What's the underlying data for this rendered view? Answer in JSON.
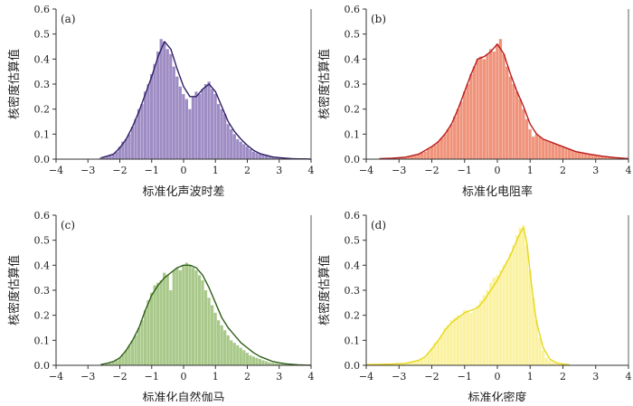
{
  "chart_data": [
    {
      "type": "bar",
      "panel_label": "(a)",
      "xlabel": "标准化声波时差",
      "ylabel": "核密度估算值",
      "xlim": [
        -4,
        4
      ],
      "ylim": [
        0,
        0.6
      ],
      "xticks": [
        "−4",
        "−3",
        "−2",
        "−1",
        "0",
        "1",
        "2",
        "3",
        "4"
      ],
      "yticks": [
        "0.0",
        "0.1",
        "0.2",
        "0.3",
        "0.4",
        "0.5",
        "0.6"
      ],
      "bar_color": "#9E8CC4",
      "line_color": "#2E1F66",
      "bin_width": 0.1,
      "bins_x": [
        -2.6,
        -2.5,
        -2.4,
        -2.3,
        -2.2,
        -2.1,
        -2.0,
        -1.9,
        -1.8,
        -1.7,
        -1.6,
        -1.5,
        -1.4,
        -1.3,
        -1.2,
        -1.1,
        -1.0,
        -0.9,
        -0.8,
        -0.7,
        -0.6,
        -0.5,
        -0.4,
        -0.3,
        -0.2,
        -0.1,
        0.0,
        0.1,
        0.2,
        0.3,
        0.4,
        0.5,
        0.6,
        0.7,
        0.8,
        0.9,
        1.0,
        1.1,
        1.2,
        1.3,
        1.4,
        1.5,
        1.6,
        1.7,
        1.8,
        1.9,
        2.0,
        2.1,
        2.2,
        2.3,
        2.4,
        2.5,
        2.6,
        2.7,
        2.8,
        2.9,
        3.0,
        3.1,
        3.2,
        3.3,
        3.4,
        3.5,
        3.6,
        3.7,
        3.8,
        3.9
      ],
      "bins_y": [
        0.005,
        0.008,
        0.01,
        0.015,
        0.02,
        0.03,
        0.05,
        0.07,
        0.08,
        0.1,
        0.13,
        0.16,
        0.2,
        0.22,
        0.27,
        0.3,
        0.34,
        0.38,
        0.43,
        0.48,
        0.47,
        0.44,
        0.42,
        0.37,
        0.33,
        0.29,
        0.26,
        0.24,
        0.2,
        0.25,
        0.27,
        0.26,
        0.28,
        0.3,
        0.31,
        0.28,
        0.26,
        0.22,
        0.2,
        0.18,
        0.14,
        0.12,
        0.1,
        0.08,
        0.07,
        0.06,
        0.05,
        0.04,
        0.03,
        0.025,
        0.02,
        0.02,
        0.018,
        0.012,
        0.008,
        0.005,
        0.006,
        0.004,
        0.003,
        0.002,
        0.002,
        0.001,
        0.001,
        0.001,
        0.001,
        0.001
      ],
      "kde_x": [
        -2.6,
        -2.4,
        -2.2,
        -2.0,
        -1.8,
        -1.6,
        -1.4,
        -1.2,
        -1.0,
        -0.8,
        -0.6,
        -0.4,
        -0.2,
        0.0,
        0.2,
        0.4,
        0.6,
        0.8,
        1.0,
        1.2,
        1.4,
        1.6,
        1.8,
        2.0,
        2.2,
        2.4,
        2.6,
        2.8,
        3.0,
        3.2,
        3.4,
        3.6,
        3.8,
        4.0
      ],
      "kde_y": [
        0.005,
        0.012,
        0.02,
        0.045,
        0.08,
        0.13,
        0.19,
        0.26,
        0.33,
        0.41,
        0.47,
        0.44,
        0.36,
        0.29,
        0.25,
        0.25,
        0.28,
        0.3,
        0.27,
        0.21,
        0.15,
        0.11,
        0.08,
        0.055,
        0.035,
        0.022,
        0.015,
        0.009,
        0.006,
        0.004,
        0.002,
        0.001,
        0.001,
        0.0
      ]
    },
    {
      "type": "bar",
      "panel_label": "(b)",
      "xlabel": "标准化电阻率",
      "ylabel": "核密度估算值",
      "xlim": [
        -4,
        4
      ],
      "ylim": [
        0,
        0.6
      ],
      "xticks": [
        "−4",
        "−3",
        "−2",
        "−1",
        "0",
        "1",
        "2",
        "3",
        "4"
      ],
      "yticks": [
        "0.0",
        "0.1",
        "0.2",
        "0.3",
        "0.4",
        "0.5",
        "0.6"
      ],
      "bar_color": "#F0937A",
      "line_color": "#B81B1B",
      "bin_width": 0.1,
      "bins_x": [
        -3.5,
        -3.4,
        -3.3,
        -3.2,
        -3.1,
        -3.0,
        -2.9,
        -2.8,
        -2.7,
        -2.6,
        -2.5,
        -2.4,
        -2.3,
        -2.2,
        -2.1,
        -2.0,
        -1.9,
        -1.8,
        -1.7,
        -1.6,
        -1.5,
        -1.4,
        -1.3,
        -1.2,
        -1.1,
        -1.0,
        -0.9,
        -0.8,
        -0.7,
        -0.6,
        -0.5,
        -0.4,
        -0.3,
        -0.2,
        -0.1,
        0.0,
        0.1,
        0.2,
        0.3,
        0.4,
        0.5,
        0.6,
        0.7,
        0.8,
        0.9,
        1.0,
        1.1,
        1.2,
        1.3,
        1.4,
        1.5,
        1.6,
        1.7,
        1.8,
        1.9,
        2.0,
        2.1,
        2.2,
        2.3,
        2.4,
        2.5,
        2.6,
        2.7,
        2.8,
        2.9,
        3.0,
        3.1,
        3.2,
        3.3,
        3.4,
        3.5,
        3.6,
        3.7,
        3.8,
        3.9
      ],
      "bins_y": [
        0.002,
        0.002,
        0.003,
        0.003,
        0.004,
        0.005,
        0.006,
        0.008,
        0.01,
        0.012,
        0.015,
        0.02,
        0.025,
        0.03,
        0.04,
        0.05,
        0.06,
        0.07,
        0.085,
        0.1,
        0.12,
        0.14,
        0.17,
        0.2,
        0.23,
        0.27,
        0.3,
        0.34,
        0.37,
        0.4,
        0.41,
        0.4,
        0.42,
        0.44,
        0.43,
        0.46,
        0.48,
        0.42,
        0.37,
        0.33,
        0.3,
        0.27,
        0.24,
        0.2,
        0.16,
        0.12,
        0.09,
        0.1,
        0.09,
        0.08,
        0.075,
        0.07,
        0.065,
        0.06,
        0.055,
        0.05,
        0.045,
        0.04,
        0.035,
        0.03,
        0.028,
        0.025,
        0.022,
        0.02,
        0.018,
        0.016,
        0.014,
        0.012,
        0.01,
        0.008,
        0.007,
        0.006,
        0.005,
        0.004,
        0.003
      ],
      "kde_x": [
        -3.6,
        -3.2,
        -2.8,
        -2.4,
        -2.0,
        -1.8,
        -1.6,
        -1.4,
        -1.2,
        -1.0,
        -0.8,
        -0.6,
        -0.4,
        -0.2,
        0.0,
        0.2,
        0.4,
        0.6,
        0.8,
        1.0,
        1.2,
        1.4,
        1.6,
        2.0,
        2.4,
        2.8,
        3.2,
        3.6,
        4.0
      ],
      "kde_y": [
        0.002,
        0.004,
        0.008,
        0.02,
        0.05,
        0.07,
        0.1,
        0.14,
        0.2,
        0.27,
        0.34,
        0.4,
        0.41,
        0.43,
        0.46,
        0.42,
        0.34,
        0.27,
        0.21,
        0.14,
        0.1,
        0.08,
        0.07,
        0.05,
        0.03,
        0.02,
        0.012,
        0.006,
        0.002
      ]
    },
    {
      "type": "bar",
      "panel_label": "(c)",
      "xlabel": "标准化自然伽马",
      "ylabel": "核密度估算值",
      "xlim": [
        -4,
        4
      ],
      "ylim": [
        0,
        0.6
      ],
      "xticks": [
        "−4",
        "−3",
        "−2",
        "−1",
        "0",
        "1",
        "2",
        "3",
        "4"
      ],
      "yticks": [
        "0.0",
        "0.1",
        "0.2",
        "0.3",
        "0.4",
        "0.5",
        "0.6"
      ],
      "bar_color": "#A9C98A",
      "line_color": "#2F5E1A",
      "bin_width": 0.1,
      "bins_x": [
        -2.4,
        -2.3,
        -2.2,
        -2.1,
        -2.0,
        -1.9,
        -1.8,
        -1.7,
        -1.6,
        -1.5,
        -1.4,
        -1.3,
        -1.2,
        -1.1,
        -1.0,
        -0.9,
        -0.8,
        -0.7,
        -0.6,
        -0.5,
        -0.4,
        -0.3,
        -0.2,
        -0.1,
        0.0,
        0.1,
        0.2,
        0.3,
        0.4,
        0.5,
        0.6,
        0.7,
        0.8,
        0.9,
        1.0,
        1.1,
        1.2,
        1.3,
        1.4,
        1.5,
        1.6,
        1.7,
        1.8,
        1.9,
        2.0,
        2.1,
        2.2,
        2.3,
        2.4,
        2.5,
        2.6,
        2.7,
        2.8,
        2.9,
        3.0,
        3.1,
        3.2,
        3.3,
        3.4,
        3.5,
        3.6,
        3.7,
        3.8,
        3.9
      ],
      "bins_y": [
        0.005,
        0.008,
        0.012,
        0.02,
        0.03,
        0.045,
        0.06,
        0.08,
        0.1,
        0.12,
        0.15,
        0.18,
        0.22,
        0.26,
        0.29,
        0.32,
        0.33,
        0.34,
        0.37,
        0.36,
        0.3,
        0.38,
        0.39,
        0.38,
        0.4,
        0.41,
        0.4,
        0.39,
        0.38,
        0.36,
        0.34,
        0.3,
        0.27,
        0.24,
        0.21,
        0.18,
        0.16,
        0.14,
        0.12,
        0.1,
        0.09,
        0.08,
        0.07,
        0.06,
        0.05,
        0.04,
        0.035,
        0.03,
        0.025,
        0.02,
        0.016,
        0.012,
        0.01,
        0.008,
        0.006,
        0.005,
        0.004,
        0.003,
        0.002,
        0.002,
        0.001,
        0.001,
        0.001,
        0.001
      ],
      "kde_x": [
        -2.6,
        -2.4,
        -2.2,
        -2.0,
        -1.8,
        -1.6,
        -1.4,
        -1.2,
        -1.0,
        -0.8,
        -0.6,
        -0.4,
        -0.2,
        0.0,
        0.2,
        0.4,
        0.6,
        0.8,
        1.0,
        1.2,
        1.4,
        1.6,
        1.8,
        2.0,
        2.2,
        2.4,
        2.6,
        2.8,
        3.0,
        3.2,
        3.4,
        3.6,
        3.8,
        4.0
      ],
      "kde_y": [
        0.003,
        0.008,
        0.015,
        0.03,
        0.06,
        0.1,
        0.15,
        0.22,
        0.28,
        0.32,
        0.35,
        0.37,
        0.39,
        0.4,
        0.4,
        0.39,
        0.36,
        0.31,
        0.25,
        0.19,
        0.15,
        0.12,
        0.09,
        0.07,
        0.05,
        0.035,
        0.025,
        0.015,
        0.01,
        0.006,
        0.004,
        0.002,
        0.001,
        0.0
      ]
    },
    {
      "type": "bar",
      "panel_label": "(d)",
      "xlabel": "标准化密度",
      "ylabel": "核密度估算值",
      "xlim": [
        -4,
        4
      ],
      "ylim": [
        0,
        0.6
      ],
      "xticks": [
        "−4",
        "−3",
        "−2",
        "−1",
        "0",
        "1",
        "2",
        "3",
        "4"
      ],
      "yticks": [
        "0.0",
        "0.1",
        "0.2",
        "0.3",
        "0.4",
        "0.5",
        "0.6"
      ],
      "bar_color": "#FBF2A0",
      "line_color": "#E6D81A",
      "bin_width": 0.1,
      "bins_x": [
        -3.9,
        -3.8,
        -3.7,
        -3.6,
        -3.5,
        -3.4,
        -3.3,
        -3.2,
        -3.1,
        -3.0,
        -2.9,
        -2.8,
        -2.7,
        -2.6,
        -2.5,
        -2.4,
        -2.3,
        -2.2,
        -2.1,
        -2.0,
        -1.9,
        -1.8,
        -1.7,
        -1.6,
        -1.5,
        -1.4,
        -1.3,
        -1.2,
        -1.1,
        -1.0,
        -0.9,
        -0.8,
        -0.7,
        -0.6,
        -0.5,
        -0.4,
        -0.3,
        -0.2,
        -0.1,
        0.0,
        0.1,
        0.2,
        0.3,
        0.4,
        0.5,
        0.6,
        0.7,
        0.8,
        0.9,
        1.0,
        1.1,
        1.2,
        1.3,
        1.4,
        1.5,
        1.6,
        1.7,
        1.8,
        1.9,
        2.0,
        2.1,
        2.2
      ],
      "bins_y": [
        0.003,
        0.003,
        0.004,
        0.004,
        0.004,
        0.005,
        0.005,
        0.005,
        0.006,
        0.006,
        0.007,
        0.008,
        0.01,
        0.012,
        0.015,
        0.02,
        0.025,
        0.035,
        0.05,
        0.07,
        0.09,
        0.1,
        0.12,
        0.15,
        0.16,
        0.18,
        0.19,
        0.2,
        0.2,
        0.22,
        0.22,
        0.21,
        0.22,
        0.24,
        0.26,
        0.28,
        0.3,
        0.33,
        0.35,
        0.36,
        0.38,
        0.4,
        0.42,
        0.45,
        0.48,
        0.52,
        0.55,
        0.56,
        0.48,
        0.38,
        0.27,
        0.18,
        0.11,
        0.06,
        0.03,
        0.02,
        0.012,
        0.008,
        0.005,
        0.004,
        0.003,
        0.002
      ],
      "kde_x": [
        -4.0,
        -3.6,
        -3.2,
        -2.8,
        -2.4,
        -2.2,
        -2.0,
        -1.8,
        -1.6,
        -1.4,
        -1.2,
        -1.0,
        -0.8,
        -0.6,
        -0.4,
        -0.2,
        0.0,
        0.2,
        0.4,
        0.6,
        0.7,
        0.8,
        0.9,
        1.0,
        1.1,
        1.2,
        1.4,
        1.6,
        1.8,
        2.0,
        2.2
      ],
      "kde_y": [
        0.003,
        0.004,
        0.005,
        0.008,
        0.02,
        0.035,
        0.065,
        0.1,
        0.14,
        0.17,
        0.19,
        0.21,
        0.22,
        0.23,
        0.26,
        0.3,
        0.34,
        0.39,
        0.44,
        0.5,
        0.53,
        0.55,
        0.49,
        0.37,
        0.26,
        0.17,
        0.07,
        0.025,
        0.01,
        0.005,
        0.002
      ]
    }
  ]
}
